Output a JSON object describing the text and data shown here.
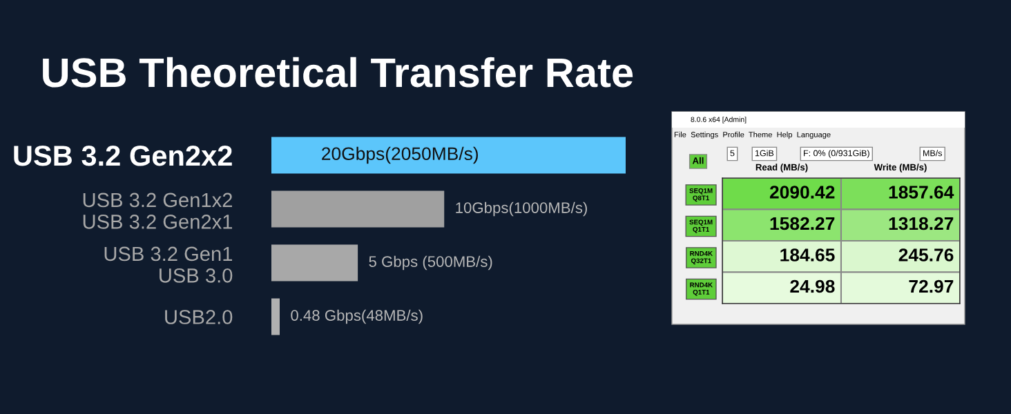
{
  "chart_data": [
    {
      "type": "bar",
      "orientation": "horizontal",
      "title": "USB Theoretical Transfer Rate",
      "categories": [
        "USB 3.2 Gen2x2",
        "USB 3.2 Gen1x2\nUSB 3.2 Gen2x1",
        "USB 3.2 Gen1\nUSB 3.0",
        "USB2.0"
      ],
      "values": [
        2050,
        1000,
        500,
        48
      ],
      "colors": [
        "#5cc6fb",
        "#a0a0a0",
        "#a8a8a8",
        "#b0b0b0"
      ],
      "value_labels": [
        "20Gbps(2050MB/s)",
        "10Gbps(1000MB/s)",
        "5 Gbps (500MB/s)",
        "0.48 Gbps(48MB/s)"
      ]
    },
    {
      "type": "heatmap",
      "data_labels": true,
      "categories": [
        "Read (MB/s)",
        "Write (MB/s)"
      ],
      "y_categories": [
        "SEQ1M\nQ8T1",
        "SEQ1M\nQ1T1",
        "RND4K\nQ32T1",
        "RND4K\nQ1T1"
      ],
      "cells": [
        [
          2090.42,
          1857.64
        ],
        [
          1582.27,
          1318.27
        ],
        [
          184.65,
          245.76
        ],
        [
          24.98,
          72.97
        ]
      ],
      "annotations": [
        "8.0.6 x64 [Admin]",
        "File  Settings  Profile  Theme  Help  Language",
        "All",
        "5",
        "1GiB",
        "F: 0% (0/931GiB)",
        "MB/s"
      ]
    }
  ]
}
